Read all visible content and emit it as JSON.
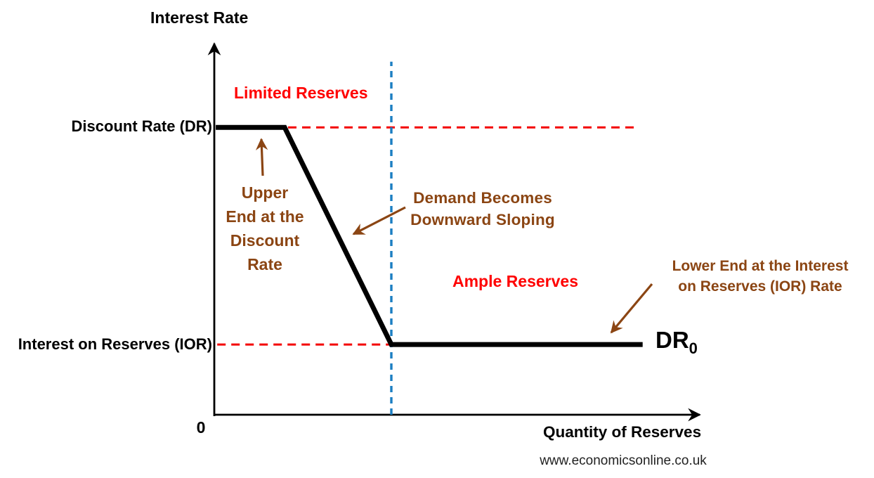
{
  "chart_data": {
    "type": "line",
    "title": "",
    "ylabel": "Interest Rate",
    "xlabel": "Quantity of Reserves",
    "origin_label": "0",
    "legend": "none",
    "grid": false,
    "axes_note": "no numeric ticks; qualitative levels only; coordinates normalized 0-1 within plot area",
    "y_level_labels": [
      {
        "label": "Discount Rate (DR)",
        "level_norm": 0.757
      },
      {
        "label": "Interest on Reserves (IOR)",
        "level_norm": 0.185
      }
    ],
    "series": [
      {
        "name": "Demand for reserves (DR0)",
        "label_main": "DR",
        "label_sub": "0",
        "color": "#000000",
        "points_norm": [
          [
            0.003,
            0.757
          ],
          [
            0.143,
            0.757
          ],
          [
            0.36,
            0.185
          ],
          [
            0.871,
            0.185
          ]
        ]
      }
    ],
    "reference_lines": [
      {
        "name": "discount-rate-level",
        "orientation": "horizontal",
        "level_norm": 0.757,
        "from_norm": 0.15,
        "to_norm": 0.86,
        "color": "#f40000",
        "style": "dashed"
      },
      {
        "name": "ior-level",
        "orientation": "horizontal",
        "level_norm": 0.185,
        "from_norm": 0.006,
        "to_norm": 0.359,
        "color": "#f40000",
        "style": "dashed"
      },
      {
        "name": "limited-ample-boundary",
        "orientation": "vertical",
        "level_norm": 0.36,
        "from_norm": 0.0,
        "to_norm": 0.93,
        "color": "#1b7ec2",
        "style": "dashed"
      }
    ],
    "regions": [
      {
        "label": "Limited Reserves",
        "color": "#ff0000",
        "side": "left-of-boundary"
      },
      {
        "label": "Ample Reserves",
        "color": "#ff0000",
        "side": "right-of-boundary"
      }
    ],
    "annotations": [
      {
        "text": "Upper\nEnd at the\nDiscount\nRate",
        "color": "#8b4513",
        "arrow_points_to": "flat top of curve at discount rate"
      },
      {
        "text": "Demand Becomes\nDownward Sloping",
        "color": "#8b4513",
        "arrow_points_to": "downward-sloping segment of curve"
      },
      {
        "text": "Lower End at the Interest\non Reserves (IOR) Rate",
        "color": "#8b4513",
        "arrow_points_to": "flat bottom of curve at IOR rate"
      }
    ]
  },
  "footer": {
    "url": "www.economicsonline.co.uk"
  }
}
